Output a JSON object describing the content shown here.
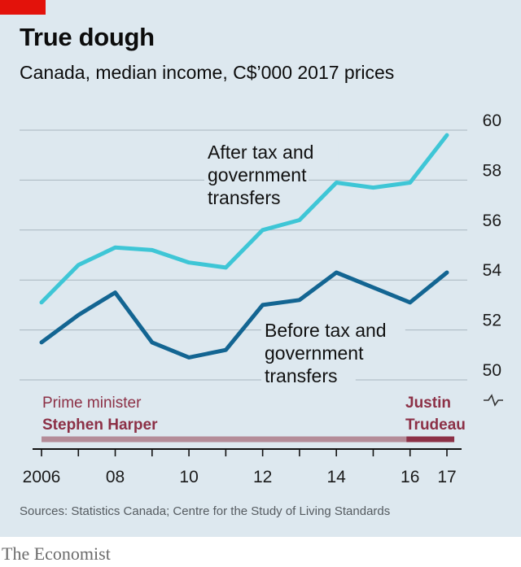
{
  "header": {
    "title": "True dough",
    "subtitle": "Canada, median income, C$’000 2017 prices"
  },
  "footer": {
    "source": "Sources: Statistics Canada; Centre for the Study of Living Standards",
    "brand": "The Economist"
  },
  "colors": {
    "after_tax": "#3ec6d6",
    "before_tax": "#136592",
    "harper": "#b48c98",
    "trudeau": "#8c3046",
    "panel": "#dde8ef",
    "brand_red": "#e3120b"
  },
  "chart_data": {
    "type": "line",
    "title": "True dough",
    "subtitle": "Canada, median income, C$’000 2017 prices",
    "x": [
      2006,
      2007,
      2008,
      2009,
      2010,
      2011,
      2012,
      2013,
      2014,
      2015,
      2016,
      2017
    ],
    "x_tick_values": [
      2006,
      2008,
      2010,
      2012,
      2014,
      2016,
      2017
    ],
    "x_tick_labels": [
      "2006",
      "08",
      "10",
      "12",
      "14",
      "16",
      "17"
    ],
    "ylim": [
      50,
      60
    ],
    "y_ticks": [
      50,
      52,
      54,
      56,
      58,
      60
    ],
    "y_axis_side": "right",
    "y_axis_break": true,
    "grid": true,
    "series": [
      {
        "name": "After tax and government transfers",
        "label_lines": [
          "After tax and",
          "government",
          "transfers"
        ],
        "values": [
          53.1,
          54.6,
          55.3,
          55.2,
          54.7,
          54.5,
          56.0,
          56.4,
          57.9,
          57.7,
          57.9,
          59.8
        ]
      },
      {
        "name": "Before tax and government transfers",
        "label_lines": [
          "Before tax and",
          "government",
          "transfers"
        ],
        "values": [
          51.5,
          52.6,
          53.5,
          51.5,
          50.9,
          51.2,
          53.0,
          53.2,
          54.3,
          53.7,
          53.1,
          54.3
        ]
      }
    ],
    "annotations": {
      "pm_label": "Prime minister",
      "periods": [
        {
          "name_lines": [
            "Stephen Harper"
          ],
          "start": 2006,
          "end": 2015.9
        },
        {
          "name_lines": [
            "Justin",
            "Trudeau"
          ],
          "start": 2015.9,
          "end": 2017.2
        }
      ]
    }
  }
}
